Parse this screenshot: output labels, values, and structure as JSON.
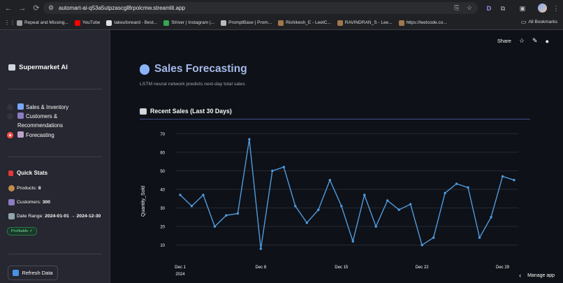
{
  "browser": {
    "url": "automart-ai-q53a5utpzascgl8rpolcmw.streamlit.app",
    "bookmarks": [
      "Repeat and Missing...",
      "YouTube",
      "takeuforward - Best...",
      "Striver | Instagram |...",
      "PromptBase | Prom...",
      "Rishikesh_E - LeetC...",
      "RAVINDRAN_S - Lee...",
      "https://leetcode.co..."
    ],
    "all_bookmarks": "All Bookmarks"
  },
  "sidebar": {
    "title": "Supermarket AI",
    "nav": [
      {
        "label": "Sales & Inventory",
        "selected": false
      },
      {
        "label": "Customers & Recommendations",
        "selected": false
      },
      {
        "label": "Forecasting",
        "selected": true
      }
    ],
    "quick_stats_title": "Quick Stats",
    "products_label": "Products:",
    "products_value": "8",
    "customers_label": "Customers:",
    "customers_value": "300",
    "date_range_label": "Date Range:",
    "date_range_value": "2024-01-01 → 2024-12-30",
    "badge": "Profitable ✓",
    "refresh_label": "Refresh Data"
  },
  "toolbar": {
    "share": "Share"
  },
  "main": {
    "title": "Sales Forecasting",
    "caption": "LSTM neural network predicts next-day total sales",
    "section_title": "Recent Sales (Last 30 Days)",
    "manage_app": "Manage app"
  },
  "colors": {
    "accent": "#ff4b4b",
    "line": "#4f9be0",
    "title": "#a4b8e8"
  },
  "chart_data": {
    "type": "line",
    "ylabel": "Quantity_Sold",
    "xlabel": "",
    "x_ticks": [
      "Dec 1",
      "Dec 8",
      "Dec 15",
      "Dec 22",
      "Dec 29"
    ],
    "x_tick_sub": "2024",
    "y_ticks": [
      10,
      20,
      30,
      40,
      50,
      60,
      70
    ],
    "ylim": [
      5,
      72
    ],
    "x": [
      "2024-12-01",
      "2024-12-02",
      "2024-12-03",
      "2024-12-04",
      "2024-12-05",
      "2024-12-06",
      "2024-12-07",
      "2024-12-08",
      "2024-12-09",
      "2024-12-10",
      "2024-12-11",
      "2024-12-12",
      "2024-12-13",
      "2024-12-14",
      "2024-12-15",
      "2024-12-16",
      "2024-12-17",
      "2024-12-18",
      "2024-12-19",
      "2024-12-20",
      "2024-12-21",
      "2024-12-22",
      "2024-12-23",
      "2024-12-24",
      "2024-12-25",
      "2024-12-26",
      "2024-12-27",
      "2024-12-28",
      "2024-12-29",
      "2024-12-30"
    ],
    "series": [
      {
        "values": [
          37,
          31,
          37,
          20,
          26,
          27,
          67,
          8,
          50,
          52,
          31,
          22,
          29,
          45,
          31,
          12,
          37,
          20,
          34,
          29,
          32,
          10,
          14,
          38,
          43,
          41,
          14,
          25,
          47,
          45
        ]
      }
    ]
  }
}
